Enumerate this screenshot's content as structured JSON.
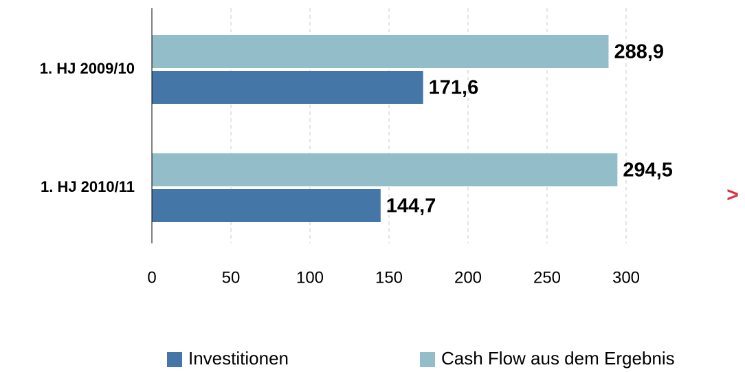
{
  "chart_data": {
    "type": "bar",
    "orientation": "horizontal",
    "categories": [
      "1. HJ 2009/10",
      "1. HJ 2010/11"
    ],
    "series": [
      {
        "name": "Investitionen",
        "color": "#4477a7",
        "values": [
          171.6,
          144.7
        ],
        "value_labels": [
          "171,6",
          "144,7"
        ]
      },
      {
        "name": "Cash Flow aus dem Ergebnis",
        "color": "#93bdc9",
        "values": [
          288.9,
          294.5
        ],
        "value_labels": [
          "288,9",
          "294,5"
        ]
      }
    ],
    "xlim": [
      0,
      300
    ],
    "xticks": [
      0,
      50,
      100,
      150,
      200,
      250,
      300
    ],
    "grid": true,
    "legend": "bottom",
    "annotation": ">"
  }
}
